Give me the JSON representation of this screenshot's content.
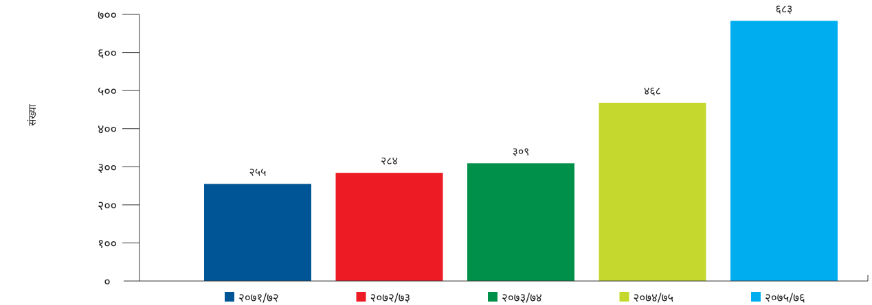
{
  "chart_data": {
    "type": "bar",
    "ylabel": "संख्या",
    "ylim": [
      0,
      700
    ],
    "y_tick_values": [
      0,
      100,
      200,
      300,
      400,
      500,
      600,
      700
    ],
    "y_tick_labels": [
      "०",
      "१००",
      "२००",
      "३००",
      "४००",
      "५००",
      "६००",
      "७००"
    ],
    "categories": [
      "२०७१/७२",
      "२०७२/७३",
      "२०७३/७४",
      "२०७४/७५",
      "२०७५/७६"
    ],
    "values": [
      255,
      284,
      309,
      468,
      683
    ],
    "value_labels": [
      "२५५",
      "२८४",
      "३०९",
      "४६८",
      "६८३"
    ],
    "colors": [
      "#005596",
      "#ED1C24",
      "#00904A",
      "#C4D82E",
      "#00AEEF"
    ],
    "legend_position": "bottom",
    "grid": false
  }
}
